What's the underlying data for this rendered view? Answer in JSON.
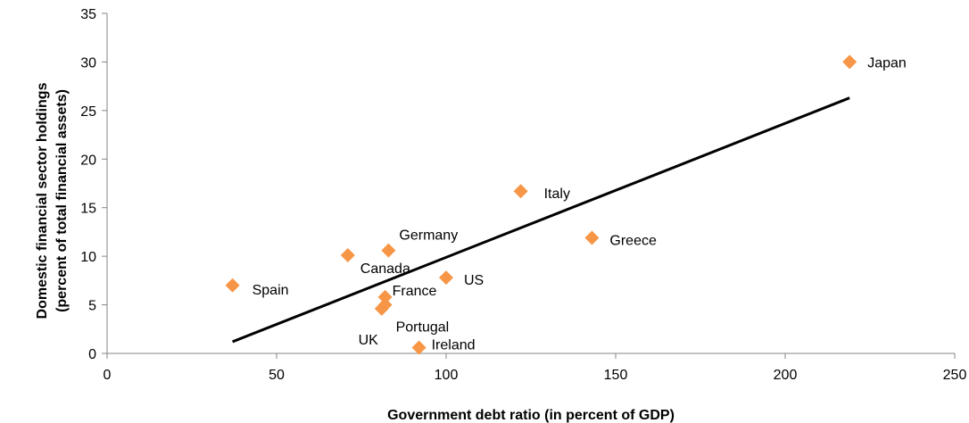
{
  "chart_data": {
    "type": "scatter",
    "title": "",
    "xlabel": "Government debt ratio  (in percent of GDP)",
    "ylabel_line1": "Domestic financial  sector holdings",
    "ylabel_line2": "(percent of total financial  assets)",
    "xlim": [
      0,
      250
    ],
    "ylim": [
      0,
      35
    ],
    "x_ticks": [
      0,
      50,
      100,
      150,
      200,
      250
    ],
    "y_ticks": [
      0,
      5,
      10,
      15,
      20,
      25,
      30,
      35
    ],
    "grid": false,
    "marker_color": "#F79646",
    "trendline_color": "#000000",
    "points": [
      {
        "label": "Japan",
        "x": 219,
        "y": 30.0
      },
      {
        "label": "Italy",
        "x": 122,
        "y": 16.7
      },
      {
        "label": "Greece",
        "x": 143,
        "y": 11.9
      },
      {
        "label": "Germany",
        "x": 83,
        "y": 10.6
      },
      {
        "label": "Canada",
        "x": 71,
        "y": 10.1
      },
      {
        "label": "US",
        "x": 100,
        "y": 7.8
      },
      {
        "label": "Spain",
        "x": 37,
        "y": 7.0
      },
      {
        "label": "France",
        "x": 82,
        "y": 5.8
      },
      {
        "label": "Portugal",
        "x": 82,
        "y": 5.0
      },
      {
        "label": "UK",
        "x": 81,
        "y": 4.6
      },
      {
        "label": "Ireland",
        "x": 92,
        "y": 0.6
      }
    ],
    "trendline": {
      "x": [
        37,
        219
      ],
      "y": [
        1.2,
        26.3
      ]
    }
  }
}
